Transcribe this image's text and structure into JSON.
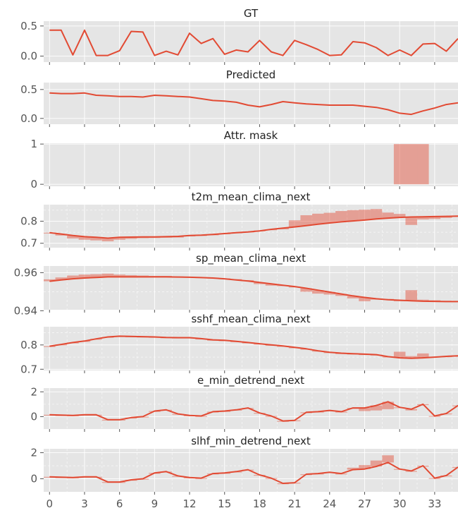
{
  "chart_data": [
    {
      "type": "line",
      "title": "GT",
      "ylim": [
        -0.1,
        0.58
      ],
      "yticks": [
        0.0,
        0.5
      ],
      "yticklabels": [
        "0.0",
        "0.5"
      ],
      "series": [
        {
          "values": [
            0.43,
            0.43,
            0.02,
            0.43,
            0.01,
            0.01,
            0.09,
            0.41,
            0.4,
            0.01,
            0.08,
            0.02,
            0.38,
            0.21,
            0.29,
            0.03,
            0.1,
            0.07,
            0.26,
            0.07,
            0.01,
            0.26,
            0.19,
            0.11,
            0.01,
            0.02,
            0.24,
            0.22,
            0.14,
            0.01,
            0.1,
            0.01,
            0.2,
            0.21,
            0.08,
            0.29
          ]
        }
      ]
    },
    {
      "type": "line",
      "title": "Predicted",
      "ylim": [
        -0.1,
        0.62
      ],
      "yticks": [
        0.0,
        0.5
      ],
      "yticklabels": [
        "0.0",
        "0.5"
      ],
      "series": [
        {
          "values": [
            0.44,
            0.43,
            0.43,
            0.44,
            0.4,
            0.39,
            0.38,
            0.38,
            0.37,
            0.4,
            0.39,
            0.38,
            0.37,
            0.34,
            0.31,
            0.3,
            0.28,
            0.23,
            0.2,
            0.24,
            0.29,
            0.27,
            0.25,
            0.24,
            0.23,
            0.23,
            0.23,
            0.21,
            0.19,
            0.15,
            0.09,
            0.07,
            0.13,
            0.18,
            0.24,
            0.27
          ]
        }
      ]
    },
    {
      "type": "bar",
      "title": "Attr. mask",
      "ylim": [
        -0.05,
        1.02
      ],
      "yticks": [
        0,
        1
      ],
      "yticklabels": [
        "0",
        "1"
      ],
      "values": [
        0,
        0,
        0,
        0,
        0,
        0,
        0,
        0,
        0,
        0,
        0,
        0,
        0,
        0,
        0,
        0,
        0,
        0,
        0,
        0,
        0,
        0,
        0,
        0,
        0,
        0,
        0,
        0,
        0,
        0,
        1,
        1,
        1,
        0,
        0,
        0
      ]
    },
    {
      "type": "line",
      "title": "t2m_mean_clima_next",
      "ylim": [
        0.68,
        0.875
      ],
      "yticks": [
        0.7,
        0.8
      ],
      "yticklabels": [
        "0.7",
        "0.8"
      ],
      "series": [
        {
          "values": [
            0.748,
            0.742,
            0.735,
            0.73,
            0.727,
            0.723,
            0.727,
            0.728,
            0.729,
            0.729,
            0.73,
            0.731,
            0.735,
            0.737,
            0.74,
            0.744,
            0.748,
            0.751,
            0.756,
            0.763,
            0.769,
            0.774,
            0.78,
            0.786,
            0.792,
            0.797,
            0.801,
            0.805,
            0.81,
            0.814,
            0.817,
            0.819,
            0.82,
            0.821,
            0.822,
            0.823
          ]
        }
      ],
      "attribution_bars": [
        0.748,
        0.735,
        0.722,
        0.716,
        0.713,
        0.709,
        0.716,
        0.72,
        0.723,
        0.724,
        0.725,
        0.726,
        0.733,
        0.736,
        0.74,
        0.745,
        0.749,
        0.753,
        0.758,
        0.761,
        0.763,
        0.804,
        0.827,
        0.834,
        0.838,
        0.846,
        0.85,
        0.852,
        0.855,
        0.839,
        0.833,
        0.783,
        0.808,
        0.81,
        0.815,
        0.82
      ]
    },
    {
      "type": "line",
      "title": "sp_mean_clima_next",
      "ylim": [
        0.9405,
        0.9635
      ],
      "yticks": [
        0.94,
        0.96
      ],
      "yticklabels": [
        "0.94",
        "0.96"
      ],
      "series": [
        {
          "values": [
            0.9555,
            0.9562,
            0.9568,
            0.9572,
            0.9575,
            0.9578,
            0.9578,
            0.9578,
            0.9578,
            0.9578,
            0.9578,
            0.9577,
            0.9576,
            0.9574,
            0.9572,
            0.9568,
            0.9562,
            0.9556,
            0.9549,
            0.9541,
            0.9534,
            0.9527,
            0.9518,
            0.9508,
            0.9498,
            0.9488,
            0.9478,
            0.947,
            0.9463,
            0.9458,
            0.9455,
            0.9452,
            0.945,
            0.9449,
            0.9448,
            0.9448
          ]
        }
      ],
      "attribution_bars": [
        0.9565,
        0.9575,
        0.9585,
        0.959,
        0.9592,
        0.9595,
        0.959,
        0.9587,
        0.9585,
        0.9583,
        0.9583,
        0.958,
        0.9578,
        0.9576,
        0.9574,
        0.957,
        0.9566,
        0.9561,
        0.954,
        0.9532,
        0.953,
        0.9525,
        0.95,
        0.949,
        0.9485,
        0.9478,
        0.9465,
        0.945,
        0.9458,
        0.9462,
        0.945,
        0.9508,
        0.9458,
        0.9455,
        0.9452,
        0.945
      ]
    },
    {
      "type": "line",
      "title": "sshf_mean_clima_next",
      "ylim": [
        0.695,
        0.875
      ],
      "yticks": [
        0.7,
        0.8
      ],
      "yticklabels": [
        "0.7",
        "0.8"
      ],
      "series": [
        {
          "values": [
            0.795,
            0.802,
            0.81,
            0.816,
            0.825,
            0.833,
            0.836,
            0.835,
            0.834,
            0.833,
            0.831,
            0.83,
            0.83,
            0.826,
            0.821,
            0.819,
            0.815,
            0.81,
            0.805,
            0.8,
            0.796,
            0.79,
            0.784,
            0.776,
            0.77,
            0.766,
            0.764,
            0.762,
            0.76,
            0.752,
            0.747,
            0.745,
            0.747,
            0.75,
            0.753,
            0.755
          ]
        }
      ],
      "attribution_bars": [
        0.795,
        0.802,
        0.81,
        0.816,
        0.825,
        0.833,
        0.836,
        0.835,
        0.834,
        0.833,
        0.831,
        0.83,
        0.83,
        0.826,
        0.821,
        0.819,
        0.815,
        0.81,
        0.805,
        0.8,
        0.796,
        0.79,
        0.784,
        0.776,
        0.77,
        0.766,
        0.764,
        0.762,
        0.76,
        0.752,
        0.772,
        0.754,
        0.765,
        0.752,
        0.753,
        0.755
      ]
    },
    {
      "type": "line",
      "title": "e_min_detrend_next",
      "ylim": [
        -1.0,
        2.3
      ],
      "yticks": [
        0,
        2
      ],
      "yticklabels": [
        "0",
        "2"
      ],
      "series": [
        {
          "values": [
            0.15,
            0.12,
            0.1,
            0.15,
            0.15,
            -0.25,
            -0.25,
            -0.08,
            0.0,
            0.45,
            0.55,
            0.22,
            0.1,
            0.05,
            0.4,
            0.45,
            0.55,
            0.7,
            0.3,
            0.05,
            -0.35,
            -0.3,
            0.35,
            0.4,
            0.5,
            0.4,
            0.7,
            0.7,
            0.9,
            1.2,
            0.75,
            0.6,
            1.0,
            0.05,
            0.25,
            0.9
          ]
        }
      ],
      "attribution_bars": [
        0.15,
        0.12,
        0.1,
        0.15,
        0.15,
        -0.25,
        -0.25,
        -0.08,
        0.0,
        0.45,
        0.55,
        0.22,
        0.1,
        0.05,
        0.4,
        0.45,
        0.55,
        0.7,
        0.3,
        0.05,
        -0.35,
        -0.3,
        0.35,
        0.4,
        0.5,
        0.4,
        0.7,
        0.45,
        0.5,
        0.6,
        0.75,
        0.5,
        1.0,
        0.05,
        0.25,
        0.9
      ]
    },
    {
      "type": "line",
      "title": "slhf_min_detrend_next",
      "ylim": [
        -1.0,
        2.3
      ],
      "yticks": [
        0,
        2
      ],
      "yticklabels": [
        "0",
        "2"
      ],
      "series": [
        {
          "values": [
            0.15,
            0.12,
            0.1,
            0.15,
            0.15,
            -0.25,
            -0.25,
            -0.08,
            0.0,
            0.45,
            0.55,
            0.22,
            0.1,
            0.05,
            0.4,
            0.45,
            0.55,
            0.7,
            0.3,
            0.05,
            -0.35,
            -0.3,
            0.35,
            0.4,
            0.5,
            0.4,
            0.7,
            0.75,
            0.95,
            1.25,
            0.75,
            0.6,
            1.0,
            0.05,
            0.25,
            0.9
          ]
        }
      ],
      "attribution_bars": [
        0.15,
        0.12,
        0.1,
        0.15,
        0.15,
        -0.25,
        -0.25,
        -0.08,
        0.0,
        0.45,
        0.55,
        0.22,
        0.1,
        0.05,
        0.4,
        0.45,
        0.55,
        0.7,
        0.3,
        0.05,
        -0.35,
        -0.3,
        0.35,
        0.4,
        0.5,
        0.4,
        0.85,
        1.05,
        1.4,
        1.8,
        0.75,
        0.6,
        1.0,
        0.05,
        0.25,
        0.9
      ]
    }
  ],
  "x_axis": {
    "xlim": [
      -0.5,
      35
    ],
    "ticks": [
      0,
      3,
      6,
      9,
      12,
      15,
      18,
      21,
      24,
      27,
      30,
      33
    ],
    "ticklabels": [
      "0",
      "3",
      "6",
      "9",
      "12",
      "15",
      "18",
      "21",
      "24",
      "27",
      "30",
      "33"
    ]
  },
  "colors": {
    "line": "#e24a33",
    "bar": "#e24a33",
    "panel": "#e5e5e5",
    "grid": "#ffffff",
    "text": "#555555"
  }
}
